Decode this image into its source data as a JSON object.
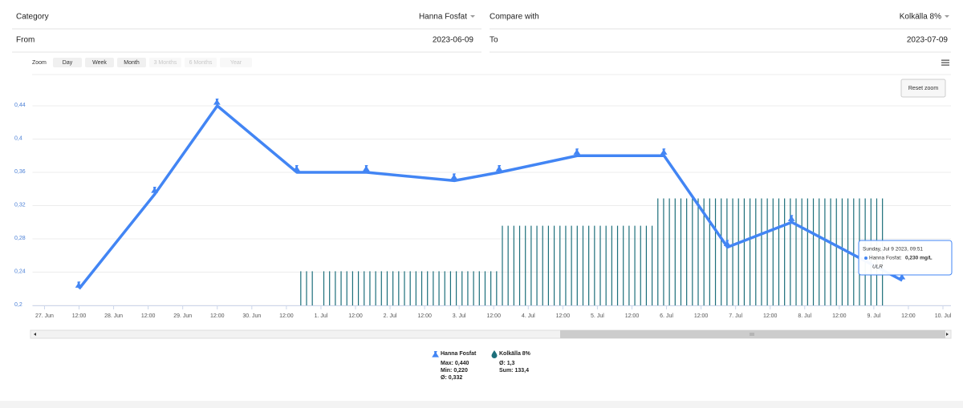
{
  "header": {
    "category_label": "Category",
    "category_value": "Hanna Fosfat",
    "compare_label": "Compare with",
    "compare_value": "Kolkälla 8%",
    "from_label": "From",
    "from_value": "2023-06-09",
    "to_label": "To",
    "to_value": "2023-07-09"
  },
  "toolbar": {
    "zoom_label": "Zoom",
    "buttons": [
      "Day",
      "Week",
      "Month",
      "3 Months",
      "6 Months",
      "Year"
    ],
    "reset": "Reset zoom"
  },
  "tooltip": {
    "date": "Sunday, Jul 9 2023, 09:51",
    "label": "Hanna Fosfat:",
    "value": "0,230 mg/L",
    "note": "ULR"
  },
  "chart_data": {
    "type": "line",
    "xlim": [
      "2023-06-26T19:50",
      "2023-07-10T02:47"
    ],
    "ylim": [
      0.2,
      0.46
    ],
    "y2lim": [
      0,
      3.8
    ],
    "yticks": [
      {
        "value": 0.2,
        "label": "0,2"
      },
      {
        "value": 0.24,
        "label": "0,24"
      },
      {
        "value": 0.28,
        "label": "0,28"
      },
      {
        "value": 0.32,
        "label": "0,32"
      },
      {
        "value": 0.36,
        "label": "0,36"
      },
      {
        "value": 0.4,
        "label": "0,4"
      },
      {
        "value": 0.44,
        "label": "0,44"
      }
    ],
    "xticks": [
      {
        "value": "2023-06-27T00:00",
        "label": "27. Jun"
      },
      {
        "value": "2023-06-27T12:00",
        "label": "12:00"
      },
      {
        "value": "2023-06-28T00:00",
        "label": "28. Jun"
      },
      {
        "value": "2023-06-28T12:00",
        "label": "12:00"
      },
      {
        "value": "2023-06-29T00:00",
        "label": "29. Jun"
      },
      {
        "value": "2023-06-29T12:00",
        "label": "12:00"
      },
      {
        "value": "2023-06-30T00:00",
        "label": "30. Jun"
      },
      {
        "value": "2023-06-30T12:00",
        "label": "12:00"
      },
      {
        "value": "2023-07-01T00:00",
        "label": "1. Jul"
      },
      {
        "value": "2023-07-01T12:00",
        "label": "12:00"
      },
      {
        "value": "2023-07-02T00:00",
        "label": "2. Jul"
      },
      {
        "value": "2023-07-02T12:00",
        "label": "12:00"
      },
      {
        "value": "2023-07-03T00:00",
        "label": "3. Jul"
      },
      {
        "value": "2023-07-03T12:00",
        "label": "12:00"
      },
      {
        "value": "2023-07-04T00:00",
        "label": "4. Jul"
      },
      {
        "value": "2023-07-04T12:00",
        "label": "12:00"
      },
      {
        "value": "2023-07-05T00:00",
        "label": "5. Jul"
      },
      {
        "value": "2023-07-05T12:00",
        "label": "12:00"
      },
      {
        "value": "2023-07-06T00:00",
        "label": "6. Jul"
      },
      {
        "value": "2023-07-06T12:00",
        "label": "12:00"
      },
      {
        "value": "2023-07-07T00:00",
        "label": "7. Jul"
      },
      {
        "value": "2023-07-07T12:00",
        "label": "12:00"
      },
      {
        "value": "2023-07-08T00:00",
        "label": "8. Jul"
      },
      {
        "value": "2023-07-08T12:00",
        "label": "12:00"
      },
      {
        "value": "2023-07-09T00:00",
        "label": "9. Jul"
      },
      {
        "value": "2023-07-09T12:00",
        "label": "12:00"
      },
      {
        "value": "2023-07-10T00:00",
        "label": "10. Jul"
      }
    ],
    "grid": true,
    "series": [
      {
        "name": "Hanna Fosfat",
        "type": "line",
        "color": "#4285f4",
        "x": [
          "2023-06-27T12:00",
          "2023-06-28T14:20",
          "2023-06-29T12:00",
          "2023-06-30T15:40",
          "2023-07-01T15:50",
          "2023-07-02T22:20",
          "2023-07-03T14:00",
          "2023-07-04T17:00",
          "2023-07-05T23:10",
          "2023-07-06T21:10",
          "2023-07-07T19:30",
          "2023-07-09T09:51"
        ],
        "values": [
          0.22,
          0.334,
          0.44,
          0.36,
          0.36,
          0.35,
          0.36,
          0.38,
          0.38,
          0.27,
          0.3,
          0.23
        ],
        "stats": [
          "Max: 0,440",
          "Min: 0,220",
          "Ø: 0,332"
        ]
      },
      {
        "name": "Kolkälla 8%",
        "type": "bar",
        "axis": "y2",
        "color": "#1d6f7b",
        "x": [
          "2023-06-30T17:00",
          "2023-06-30T19:00",
          "2023-06-30T21:00",
          "2023-07-01T01:00",
          "2023-07-01T03:00",
          "2023-07-01T05:00",
          "2023-07-01T07:00",
          "2023-07-01T09:00",
          "2023-07-01T11:00",
          "2023-07-01T13:00",
          "2023-07-01T15:00",
          "2023-07-01T17:00",
          "2023-07-01T19:00",
          "2023-07-01T21:00",
          "2023-07-01T23:00",
          "2023-07-02T01:00",
          "2023-07-02T03:00",
          "2023-07-02T05:00",
          "2023-07-02T07:00",
          "2023-07-02T09:00",
          "2023-07-02T11:00",
          "2023-07-02T13:00",
          "2023-07-02T15:00",
          "2023-07-02T17:00",
          "2023-07-02T19:00",
          "2023-07-02T21:00",
          "2023-07-02T23:00",
          "2023-07-03T01:00",
          "2023-07-03T03:00",
          "2023-07-03T05:00",
          "2023-07-03T07:00",
          "2023-07-03T09:00",
          "2023-07-03T11:00",
          "2023-07-03T13:00",
          "2023-07-03T15:00",
          "2023-07-03T17:00",
          "2023-07-03T19:00",
          "2023-07-03T21:00",
          "2023-07-03T23:00",
          "2023-07-04T01:00",
          "2023-07-04T03:00",
          "2023-07-04T05:00",
          "2023-07-04T07:00",
          "2023-07-04T09:00",
          "2023-07-04T11:00",
          "2023-07-04T13:00",
          "2023-07-04T15:00",
          "2023-07-04T17:00",
          "2023-07-04T19:00",
          "2023-07-04T21:00",
          "2023-07-04T23:00",
          "2023-07-05T01:00",
          "2023-07-05T03:00",
          "2023-07-05T05:00",
          "2023-07-05T07:00",
          "2023-07-05T09:00",
          "2023-07-05T11:00",
          "2023-07-05T13:00",
          "2023-07-05T15:00",
          "2023-07-05T17:00",
          "2023-07-05T19:00",
          "2023-07-05T21:00",
          "2023-07-05T23:00",
          "2023-07-06T01:00",
          "2023-07-06T03:00",
          "2023-07-06T05:00",
          "2023-07-06T07:00",
          "2023-07-06T09:00",
          "2023-07-06T11:00",
          "2023-07-06T13:00",
          "2023-07-06T15:00",
          "2023-07-06T17:00",
          "2023-07-06T19:00",
          "2023-07-06T21:00",
          "2023-07-06T23:00",
          "2023-07-07T01:00",
          "2023-07-07T03:00",
          "2023-07-07T05:00",
          "2023-07-07T07:00",
          "2023-07-07T09:00",
          "2023-07-07T11:00",
          "2023-07-07T13:00",
          "2023-07-07T15:00",
          "2023-07-07T17:00",
          "2023-07-07T19:00",
          "2023-07-07T21:00",
          "2023-07-07T23:00",
          "2023-07-08T01:00",
          "2023-07-08T03:00",
          "2023-07-08T05:00",
          "2023-07-08T07:00",
          "2023-07-08T09:00",
          "2023-07-08T11:00",
          "2023-07-08T13:00",
          "2023-07-08T15:00",
          "2023-07-08T17:00",
          "2023-07-08T19:00",
          "2023-07-08T21:00",
          "2023-07-08T23:00",
          "2023-07-09T01:00",
          "2023-07-09T03:00"
        ],
        "values": [
          0.6,
          0.6,
          0.6,
          0.6,
          0.6,
          0.6,
          0.6,
          0.6,
          0.6,
          0.6,
          0.6,
          0.6,
          0.6,
          0.6,
          0.6,
          0.6,
          0.6,
          0.6,
          0.6,
          0.6,
          0.6,
          0.6,
          0.6,
          0.6,
          0.6,
          0.6,
          0.6,
          0.6,
          0.6,
          0.6,
          0.6,
          0.6,
          0.6,
          0.6,
          1.4,
          1.4,
          1.4,
          1.4,
          1.4,
          1.4,
          1.4,
          1.4,
          1.4,
          1.4,
          1.4,
          1.4,
          1.4,
          1.4,
          1.4,
          1.4,
          1.4,
          1.4,
          1.4,
          1.4,
          1.4,
          1.4,
          1.4,
          1.4,
          1.4,
          1.4,
          1.4,
          1.88,
          1.88,
          1.88,
          1.88,
          1.88,
          1.88,
          1.88,
          1.88,
          1.88,
          1.88,
          1.88,
          1.88,
          1.88,
          1.88,
          1.88,
          1.88,
          1.88,
          1.88,
          1.88,
          1.88,
          1.88,
          1.88,
          1.88,
          1.88,
          1.88,
          1.88,
          1.88,
          1.88,
          1.88,
          1.88,
          1.88,
          1.88,
          1.88,
          1.88,
          1.88,
          1.88,
          1.88,
          1.88,
          1.88,
          1.88
        ],
        "stats": [
          "Ø: 1,3",
          "Sum: 133,4"
        ]
      }
    ]
  }
}
